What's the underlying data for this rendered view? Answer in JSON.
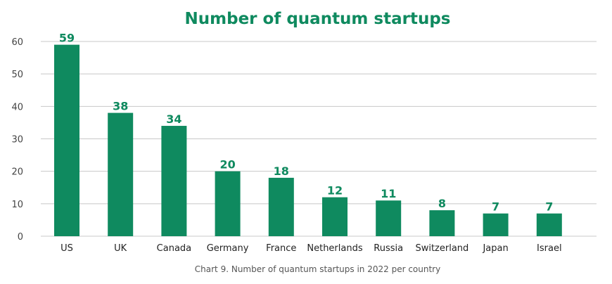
{
  "chart_data": {
    "type": "bar",
    "title": "Number of quantum startups",
    "caption": "Chart 9. Number of quantum startups in 2022 per country",
    "categories": [
      "US",
      "UK",
      "Canada",
      "Germany",
      "France",
      "Netherlands",
      "Russia",
      "Switzerland",
      "Japan",
      "Israel"
    ],
    "values": [
      59,
      38,
      34,
      20,
      18,
      12,
      11,
      8,
      7,
      7
    ],
    "ylim": [
      0,
      60
    ],
    "yticks": [
      0,
      10,
      20,
      30,
      40,
      50,
      60
    ],
    "grid": true,
    "legend": "none",
    "colors": {
      "bar": "#0f8a5f",
      "label": "#0f8a5f",
      "grid": "#c8c8c8"
    }
  }
}
